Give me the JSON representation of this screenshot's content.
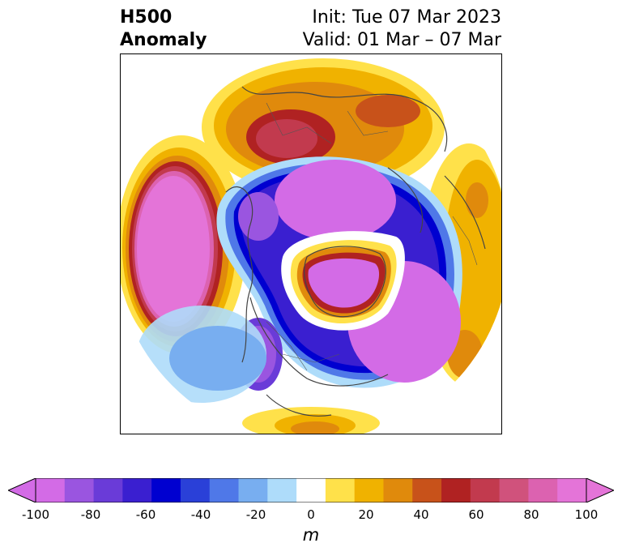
{
  "header": {
    "title_left": "H500\nAnomaly",
    "title_right": "Init: Tue 07 Mar 2023\nValid: 01 Mar – 07 Mar"
  },
  "colorbar": {
    "unit": "m",
    "ticks": [
      "-100",
      "-80",
      "-60",
      "-40",
      "-20",
      "0",
      "20",
      "40",
      "60",
      "80",
      "100"
    ],
    "colors": [
      "#d36be6",
      "#9a55e0",
      "#6a3bd8",
      "#3a1fd0",
      "#0000d0",
      "#2a40d8",
      "#4f78e8",
      "#78aef0",
      "#aedcfa",
      "#ffffff",
      "#ffe14a",
      "#f0b200",
      "#e08a0c",
      "#c8521a",
      "#b02222",
      "#c23a4e",
      "#d0527c",
      "#dc62b0",
      "#e474d8"
    ],
    "extend_low": "#d36be6",
    "extend_high": "#e474d8"
  },
  "map": {
    "projection": "polar stereographic (north pole)",
    "features": [
      "continent outlines",
      "country borders",
      "state borders"
    ]
  }
}
